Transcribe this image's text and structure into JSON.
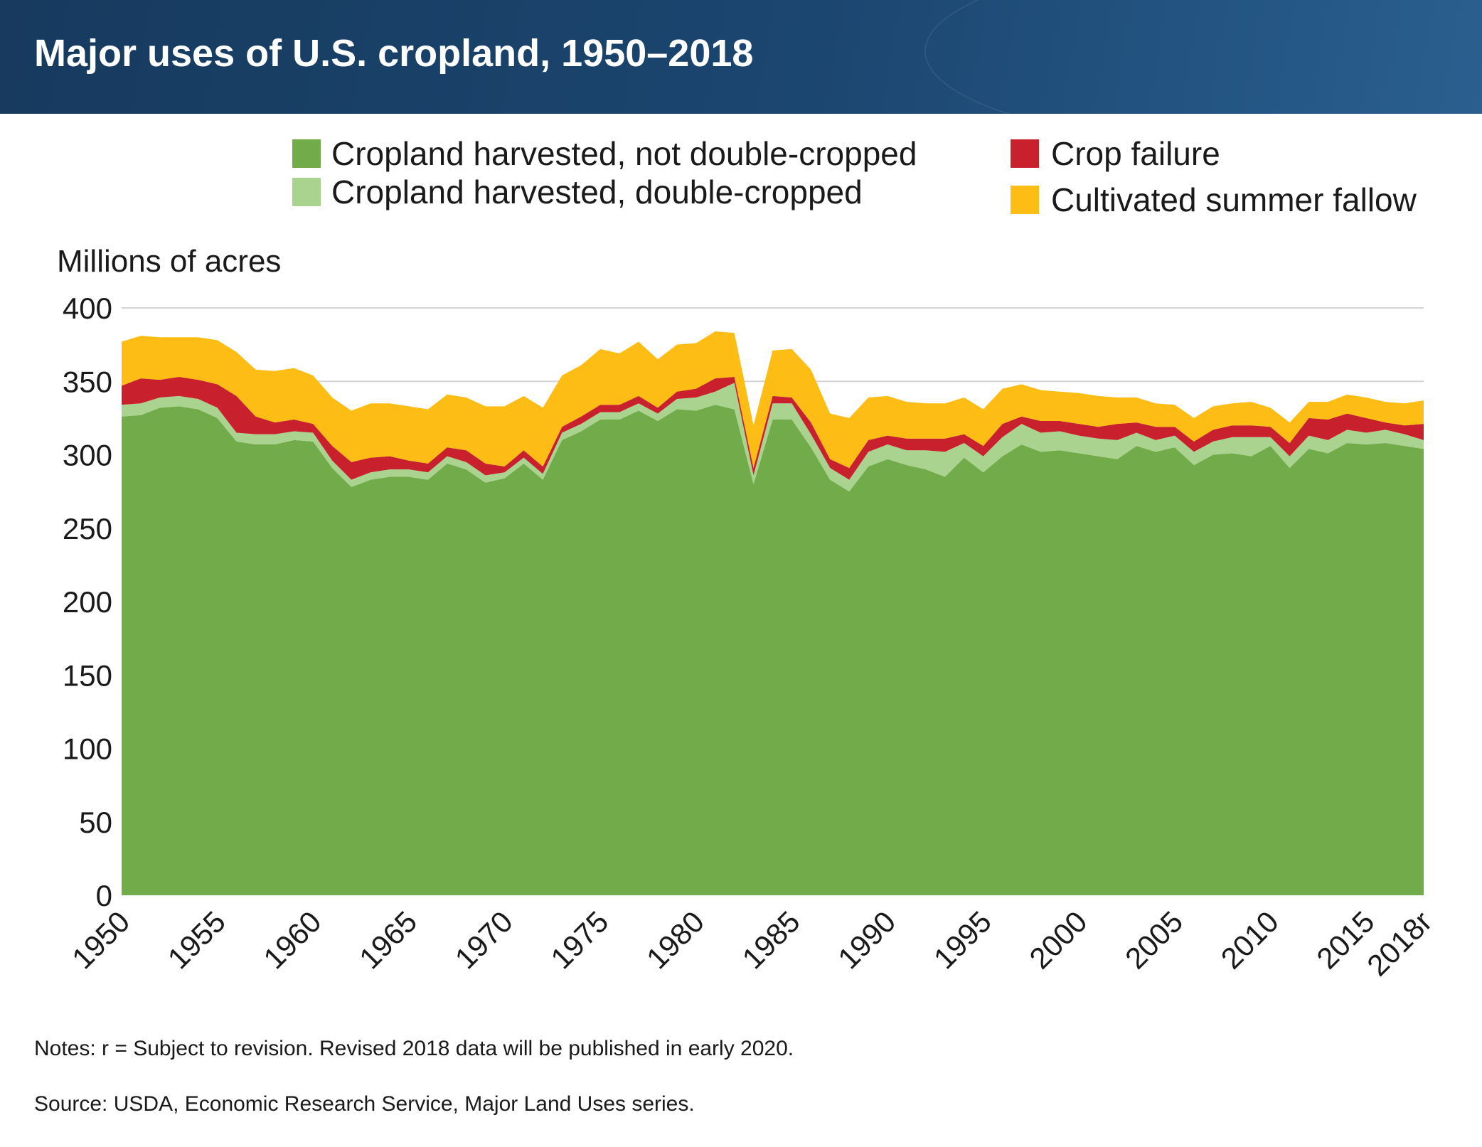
{
  "title": "Major uses of U.S. cropland, 1950–2018",
  "notes": "Notes: r = Subject to revision. Revised 2018 data will be published in early 2020.",
  "source": "Source: USDA, Economic Research Service, Major Land Uses series.",
  "chart_data": {
    "type": "area",
    "stacked": true,
    "ylabel": "Millions of acres",
    "ylim": [
      0,
      400
    ],
    "yticks": [
      0,
      50,
      100,
      150,
      200,
      250,
      300,
      350,
      400
    ],
    "xlim": [
      1950,
      2018
    ],
    "xticks": [
      {
        "value": 1950,
        "label": "1950"
      },
      {
        "value": 1955,
        "label": "1955"
      },
      {
        "value": 1960,
        "label": "1960"
      },
      {
        "value": 1965,
        "label": "1965"
      },
      {
        "value": 1970,
        "label": "1970"
      },
      {
        "value": 1975,
        "label": "1975"
      },
      {
        "value": 1980,
        "label": "1980"
      },
      {
        "value": 1985,
        "label": "1985"
      },
      {
        "value": 1990,
        "label": "1990"
      },
      {
        "value": 1995,
        "label": "1995"
      },
      {
        "value": 2000,
        "label": "2000"
      },
      {
        "value": 2005,
        "label": "2005"
      },
      {
        "value": 2010,
        "label": "2010"
      },
      {
        "value": 2015,
        "label": "2015"
      },
      {
        "value": 2018,
        "label": "2018r"
      }
    ],
    "grid": "horizontal",
    "legend_placement": "top",
    "x": [
      1950,
      1951,
      1952,
      1953,
      1954,
      1955,
      1956,
      1957,
      1958,
      1959,
      1960,
      1961,
      1962,
      1963,
      1964,
      1965,
      1966,
      1967,
      1968,
      1969,
      1970,
      1971,
      1972,
      1973,
      1974,
      1975,
      1976,
      1977,
      1978,
      1979,
      1980,
      1981,
      1982,
      1983,
      1984,
      1985,
      1986,
      1987,
      1988,
      1989,
      1990,
      1991,
      1992,
      1993,
      1994,
      1995,
      1996,
      1997,
      1998,
      1999,
      2000,
      2001,
      2002,
      2003,
      2004,
      2005,
      2006,
      2007,
      2008,
      2009,
      2010,
      2011,
      2012,
      2013,
      2014,
      2015,
      2016,
      2017,
      2018
    ],
    "series": [
      {
        "name": "Cropland harvested, not double-cropped",
        "color": "#72ac4a",
        "values": [
          326,
          327,
          332,
          333,
          331,
          325,
          309,
          307,
          307,
          310,
          309,
          291,
          278,
          283,
          285,
          285,
          283,
          294,
          290,
          281,
          284,
          294,
          283,
          310,
          316,
          324,
          324,
          330,
          323,
          331,
          330,
          334,
          331,
          280,
          324,
          324,
          305,
          283,
          275,
          292,
          297,
          293,
          290,
          285,
          298,
          288,
          299,
          307,
          302,
          303,
          301,
          299,
          297,
          306,
          302,
          305,
          293,
          300,
          301,
          299,
          306,
          291,
          304,
          301,
          308,
          307,
          308,
          306,
          304
        ]
      },
      {
        "name": "Cropland harvested, double-cropped",
        "color": "#a9d38e",
        "values": [
          8,
          8,
          7,
          7,
          7,
          7,
          6,
          7,
          7,
          6,
          6,
          5,
          5,
          5,
          5,
          5,
          5,
          5,
          5,
          5,
          4,
          4,
          4,
          5,
          5,
          5,
          5,
          5,
          5,
          7,
          9,
          9,
          18,
          6,
          11,
          11,
          9,
          8,
          8,
          10,
          10,
          10,
          13,
          17,
          10,
          11,
          13,
          14,
          13,
          13,
          12,
          12,
          13,
          9,
          8,
          8,
          9,
          9,
          11,
          13,
          6,
          8,
          9,
          9,
          9,
          8,
          9,
          8,
          6
        ]
      },
      {
        "name": "Crop failure",
        "color": "#c8202c",
        "values": [
          13,
          17,
          12,
          13,
          13,
          16,
          25,
          12,
          8,
          8,
          6,
          10,
          12,
          10,
          9,
          6,
          6,
          6,
          8,
          8,
          4,
          5,
          5,
          4,
          5,
          5,
          5,
          5,
          4,
          5,
          6,
          9,
          4,
          5,
          5,
          4,
          8,
          6,
          8,
          8,
          6,
          8,
          8,
          9,
          6,
          7,
          9,
          5,
          8,
          7,
          8,
          8,
          11,
          7,
          9,
          6,
          7,
          8,
          8,
          8,
          7,
          9,
          12,
          14,
          11,
          10,
          5,
          6,
          11
        ]
      },
      {
        "name": "Cultivated summer fallow",
        "color": "#fdbd14",
        "values": [
          30,
          29,
          29,
          27,
          29,
          30,
          30,
          32,
          35,
          35,
          33,
          33,
          35,
          37,
          36,
          37,
          37,
          36,
          36,
          39,
          41,
          37,
          40,
          35,
          35,
          38,
          35,
          37,
          33,
          32,
          31,
          32,
          30,
          29,
          31,
          33,
          36,
          31,
          34,
          29,
          27,
          25,
          24,
          24,
          25,
          25,
          24,
          22,
          21,
          20,
          21,
          21,
          18,
          17,
          16,
          15,
          16,
          16,
          15,
          16,
          13,
          14,
          11,
          12,
          13,
          14,
          14,
          15,
          16
        ]
      }
    ]
  }
}
